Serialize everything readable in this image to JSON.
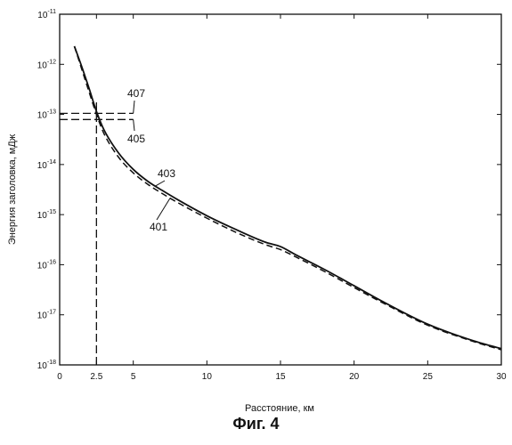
{
  "chart_data": {
    "type": "line",
    "title": "",
    "xlabel": "Расстояние, км",
    "ylabel": "Энергия заголовка, мДж",
    "xlim": [
      0,
      30
    ],
    "ylim": [
      1e-18,
      1e-11
    ],
    "y_scale": "log",
    "x_ticks": [
      {
        "value": 0,
        "label": "0"
      },
      {
        "value": 2.5,
        "label": "2.5"
      },
      {
        "value": 5,
        "label": "5"
      },
      {
        "value": 10,
        "label": "10"
      },
      {
        "value": 15,
        "label": "15"
      },
      {
        "value": 20,
        "label": "20"
      },
      {
        "value": 25,
        "label": "25"
      },
      {
        "value": 30,
        "label": "30"
      }
    ],
    "y_ticks": [
      {
        "value": 1e-11,
        "base": "10",
        "exp": "-11"
      },
      {
        "value": 1e-12,
        "base": "10",
        "exp": "-12"
      },
      {
        "value": 1e-13,
        "base": "10",
        "exp": "-13"
      },
      {
        "value": 1e-14,
        "base": "10",
        "exp": "-14"
      },
      {
        "value": 1e-15,
        "base": "10",
        "exp": "-15"
      },
      {
        "value": 1e-16,
        "base": "10",
        "exp": "-16"
      },
      {
        "value": 1e-17,
        "base": "10",
        "exp": "-17"
      },
      {
        "value": 1e-18,
        "base": "10",
        "exp": "-18"
      }
    ],
    "grid": false,
    "series": [
      {
        "name": "403",
        "style": "solid",
        "x": [
          1.0,
          1.5,
          2.0,
          2.5,
          3.0,
          4.0,
          5.0,
          6.0,
          7.0,
          8.0,
          10.0,
          12.0,
          14.0,
          15.0,
          16.0,
          18.0,
          20.0,
          22.0,
          25.0,
          28.0,
          30.0
        ],
        "y": [
          2.3e-12,
          9e-13,
          3.3e-13,
          1.15e-13,
          5e-14,
          1.7e-14,
          8e-15,
          4.6e-15,
          3e-15,
          2e-15,
          9.5e-16,
          5e-16,
          2.8e-16,
          2.3e-16,
          1.6e-16,
          8e-17,
          3.8e-17,
          1.8e-17,
          6.5e-18,
          3.1e-18,
          2.1e-18
        ]
      },
      {
        "name": "401",
        "style": "dashed",
        "x": [
          1.0,
          1.5,
          2.0,
          2.5,
          3.0,
          4.0,
          5.0,
          6.0,
          7.0,
          8.0,
          10.0,
          12.0,
          14.0,
          15.0,
          16.0,
          18.0,
          20.0,
          22.0,
          25.0,
          28.0,
          30.0
        ],
        "y": [
          2.3e-12,
          8e-13,
          2.8e-13,
          1e-13,
          4.2e-14,
          1.4e-14,
          6.8e-15,
          4e-15,
          2.6e-15,
          1.75e-15,
          8.5e-16,
          4.4e-16,
          2.5e-16,
          2e-16,
          1.45e-16,
          7.3e-17,
          3.5e-17,
          1.7e-17,
          6.2e-18,
          3e-18,
          2e-18
        ]
      }
    ],
    "reference_lines": [
      {
        "label": "407",
        "type": "horizontal",
        "value": 1.05e-13,
        "x_end": 5
      },
      {
        "label": "405",
        "type": "horizontal",
        "value": 7.9e-14,
        "x_end": 5
      },
      {
        "type": "vertical",
        "value": 2.5
      }
    ],
    "annotations": [
      {
        "text": "407",
        "target": "407"
      },
      {
        "text": "405",
        "target": "405"
      },
      {
        "text": "403",
        "target": "403"
      },
      {
        "text": "401",
        "target": "401"
      }
    ],
    "caption": "Фиг. 4"
  }
}
